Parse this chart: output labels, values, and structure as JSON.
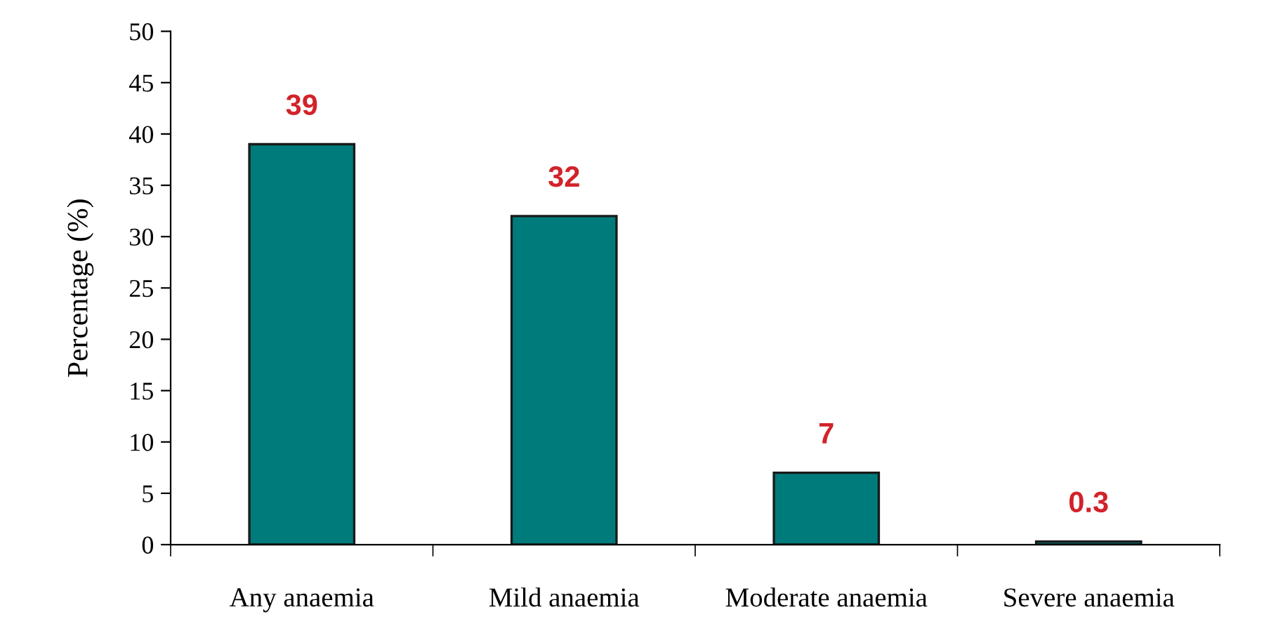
{
  "chart_data": {
    "type": "bar",
    "ylabel": "Percentage (%)",
    "categories": [
      "Any anaemia",
      "Mild anaemia",
      "Moderate anaemia",
      "Severe anaemia"
    ],
    "values": [
      39,
      32,
      7,
      0.3
    ],
    "color": "#007b7b",
    "ylim": [
      0,
      50
    ],
    "yticks": [
      0,
      5,
      10,
      15,
      20,
      25,
      30,
      35,
      40,
      45,
      50
    ],
    "data_labels": true,
    "grid": false,
    "legend": false
  }
}
